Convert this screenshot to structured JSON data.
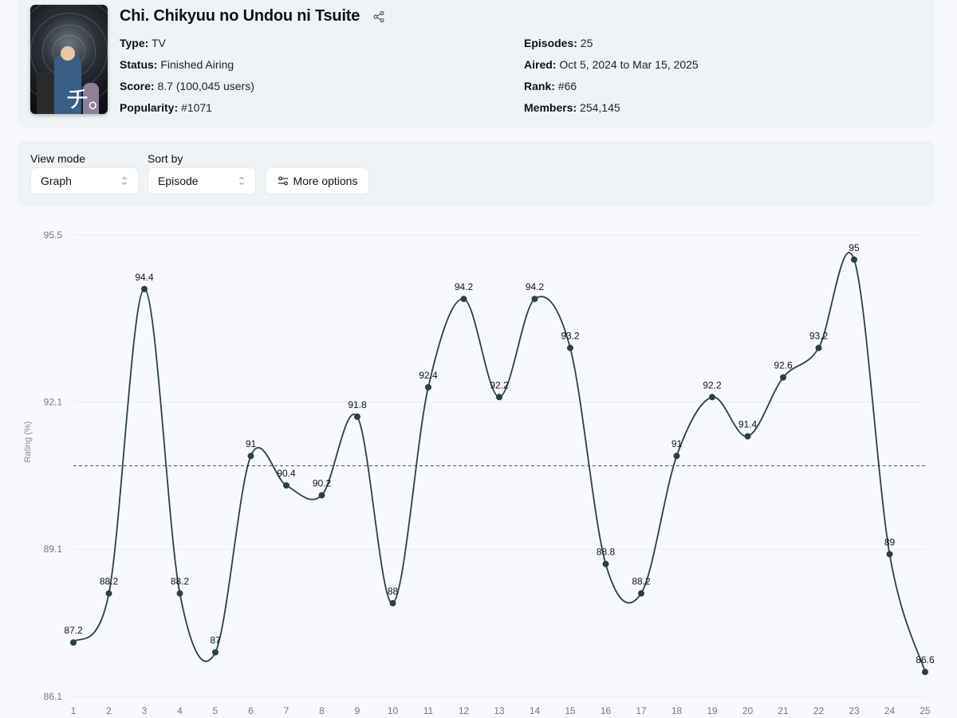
{
  "anime": {
    "title": "Chi. Chikyuu no Undou ni Tsuite",
    "poster_kanji": "チ。",
    "fields_left": [
      {
        "label": "Type:",
        "value": "TV"
      },
      {
        "label": "Status:",
        "value": "Finished Airing"
      },
      {
        "label": "Score:",
        "value": "8.7 (100,045 users)"
      },
      {
        "label": "Popularity:",
        "value": "#1071"
      }
    ],
    "fields_right": [
      {
        "label": "Episodes:",
        "value": "25"
      },
      {
        "label": "Aired:",
        "value": "Oct 5, 2024 to Mar 15, 2025"
      },
      {
        "label": "Rank:",
        "value": "#66"
      },
      {
        "label": "Members:",
        "value": "254,145"
      }
    ]
  },
  "controls": {
    "view_mode_label": "View mode",
    "view_mode_value": "Graph",
    "sort_by_label": "Sort by",
    "sort_by_value": "Episode",
    "more_options_label": "More options"
  },
  "icons": {
    "share": "share-icon",
    "select_chevron": "chevron-up-down-icon",
    "options": "sliders-icon"
  },
  "colors": {
    "line": "#2a4049",
    "average_line": "#555555",
    "card_bg": "#f0f3f5",
    "page_bg": "#f7f9fc"
  },
  "chart_data": {
    "type": "line",
    "title": "",
    "xlabel": "",
    "ylabel": "Rating (%)",
    "categories": [
      "1",
      "2",
      "3",
      "4",
      "5",
      "6",
      "7",
      "8",
      "9",
      "10",
      "11",
      "12",
      "13",
      "14",
      "15",
      "16",
      "17",
      "18",
      "19",
      "20",
      "21",
      "22",
      "23",
      "24",
      "25"
    ],
    "series": [
      {
        "name": "Rating",
        "values": [
          87.2,
          88.2,
          94.4,
          88.2,
          87,
          91,
          90.4,
          90.2,
          91.8,
          88,
          92.4,
          94.2,
          92.2,
          94.2,
          93.2,
          88.8,
          88.2,
          91,
          92.2,
          91.4,
          92.6,
          93.2,
          95,
          89,
          86.6
        ]
      }
    ],
    "y_ticks": [
      "95.5",
      "92.1",
      "89.1",
      "86.1"
    ],
    "ylim": [
      86.1,
      95.5
    ],
    "average_line": 90.8,
    "grid": "horizontal",
    "smooth": true,
    "data_labels": true,
    "legend": "none"
  }
}
